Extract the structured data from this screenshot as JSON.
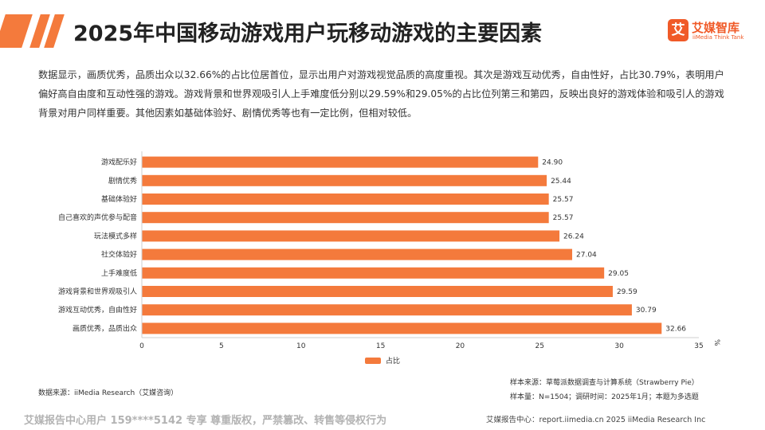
{
  "header": {
    "title": "2025年中国移动游戏用户玩移动游戏的主要因素",
    "logo_mark": "艾",
    "logo_cn": "艾媒智库",
    "logo_en": "iiMedia Think Tank"
  },
  "description": "数据显示，画质优秀，品质出众以32.66%的占比位居首位，显示出用户对游戏视觉品质的高度重视。其次是游戏互动优秀，自由性好，占比30.79%，表明用户偏好高自由度和互动性强的游戏。游戏背景和世界观吸引人上手难度低分别以29.59%和29.05%的占比位列第三和第四，反映出良好的游戏体验和吸引人的游戏背景对用户同样重要。其他因素如基础体验好、剧情优秀等也有一定比例，但相对较低。",
  "chart_data": {
    "type": "bar",
    "orientation": "horizontal",
    "categories": [
      "游戏配乐好",
      "剧情优秀",
      "基础体验好",
      "自己喜欢的声优参与配音",
      "玩法模式多样",
      "社交体验好",
      "上手难度低",
      "游戏背景和世界观吸引人",
      "游戏互动优秀，自由性好",
      "画质优秀，品质出众"
    ],
    "series": [
      {
        "name": "占比",
        "values": [
          24.9,
          25.44,
          25.57,
          25.57,
          26.24,
          27.04,
          29.05,
          29.59,
          30.79,
          32.66
        ]
      }
    ],
    "value_labels": [
      "24.90",
      "25.44",
      "25.57",
      "25.57",
      "26.24",
      "27.04",
      "29.05",
      "29.59",
      "30.79",
      "32.66"
    ],
    "xlim": [
      0,
      35
    ],
    "xticks": [
      "0",
      "5",
      "10",
      "15",
      "20",
      "25",
      "30",
      "35"
    ],
    "unit_label": "%",
    "bar_color": "#f47a3c",
    "grid": false,
    "legend_position": "bottom"
  },
  "footer": {
    "data_source": "数据来源：iiMedia Research（艾媒咨询）",
    "sample_source": "样本来源：草莓派数据调查与计算系统（Strawberry Pie）",
    "sample_size": "样本量：N=1504；调研时间：2025年1月；本题为多选题",
    "watermark": "艾媒报告中心用户 159****5142 专享 尊重版权，严禁篡改、转售等侵权行为",
    "report_site": "艾媒报告中心：report.iimedia.cn  2025 iiMedia Research Inc"
  }
}
